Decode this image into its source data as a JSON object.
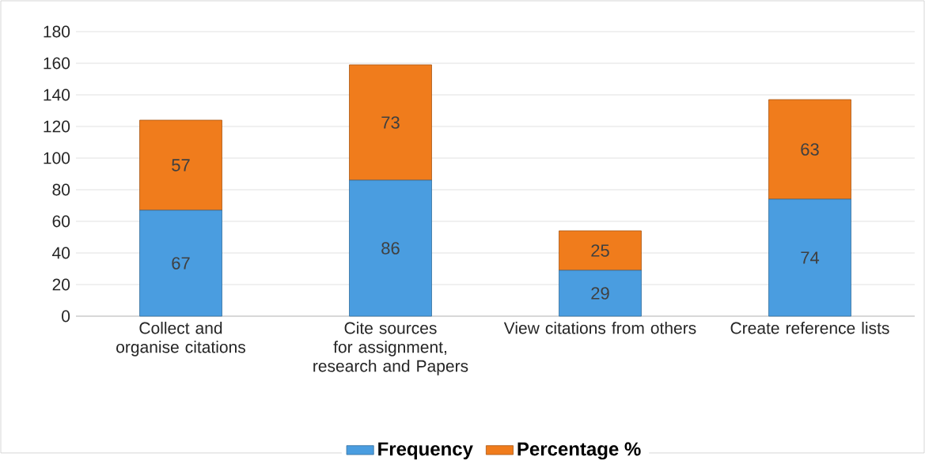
{
  "chart_data": {
    "type": "bar",
    "stacked": true,
    "categories": [
      "Collect and organise citations",
      "Cite sources for assignment, research and Papers",
      "View citations from others",
      "Create reference lists"
    ],
    "series": [
      {
        "name": "Frequency",
        "color": "#4a9de0",
        "values": [
          67,
          86,
          29,
          74
        ]
      },
      {
        "name": "Percentage %",
        "color": "#f07c1c",
        "values": [
          57,
          73,
          25,
          63
        ]
      }
    ],
    "ylim": [
      0,
      180
    ],
    "yticks": [
      0,
      20,
      40,
      60,
      80,
      100,
      120,
      140,
      160,
      180
    ],
    "grid": "y",
    "legend": "bottom",
    "data_labels": true
  }
}
